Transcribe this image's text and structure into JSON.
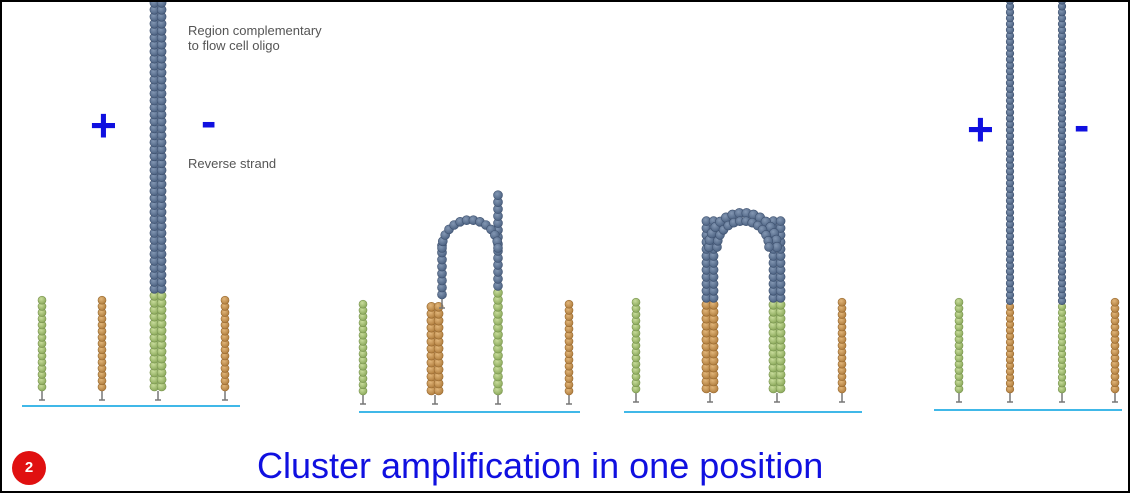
{
  "figure": {
    "step_number": "2",
    "caption": "Cluster amplification in one position",
    "labels": {
      "complementary_line1": "Region complementary",
      "complementary_line2": "to flow cell oligo",
      "reverse_strand": "Reverse strand"
    },
    "signs": {
      "plus": "+",
      "minus": "-"
    },
    "colors": {
      "green_bead": "#9dbb6a",
      "orange_bead": "#c89450",
      "blue_bead": "#5a7090",
      "surface_line": "#40b8e8",
      "text_blue": "#1010e0",
      "badge_red": "#e01010"
    }
  }
}
